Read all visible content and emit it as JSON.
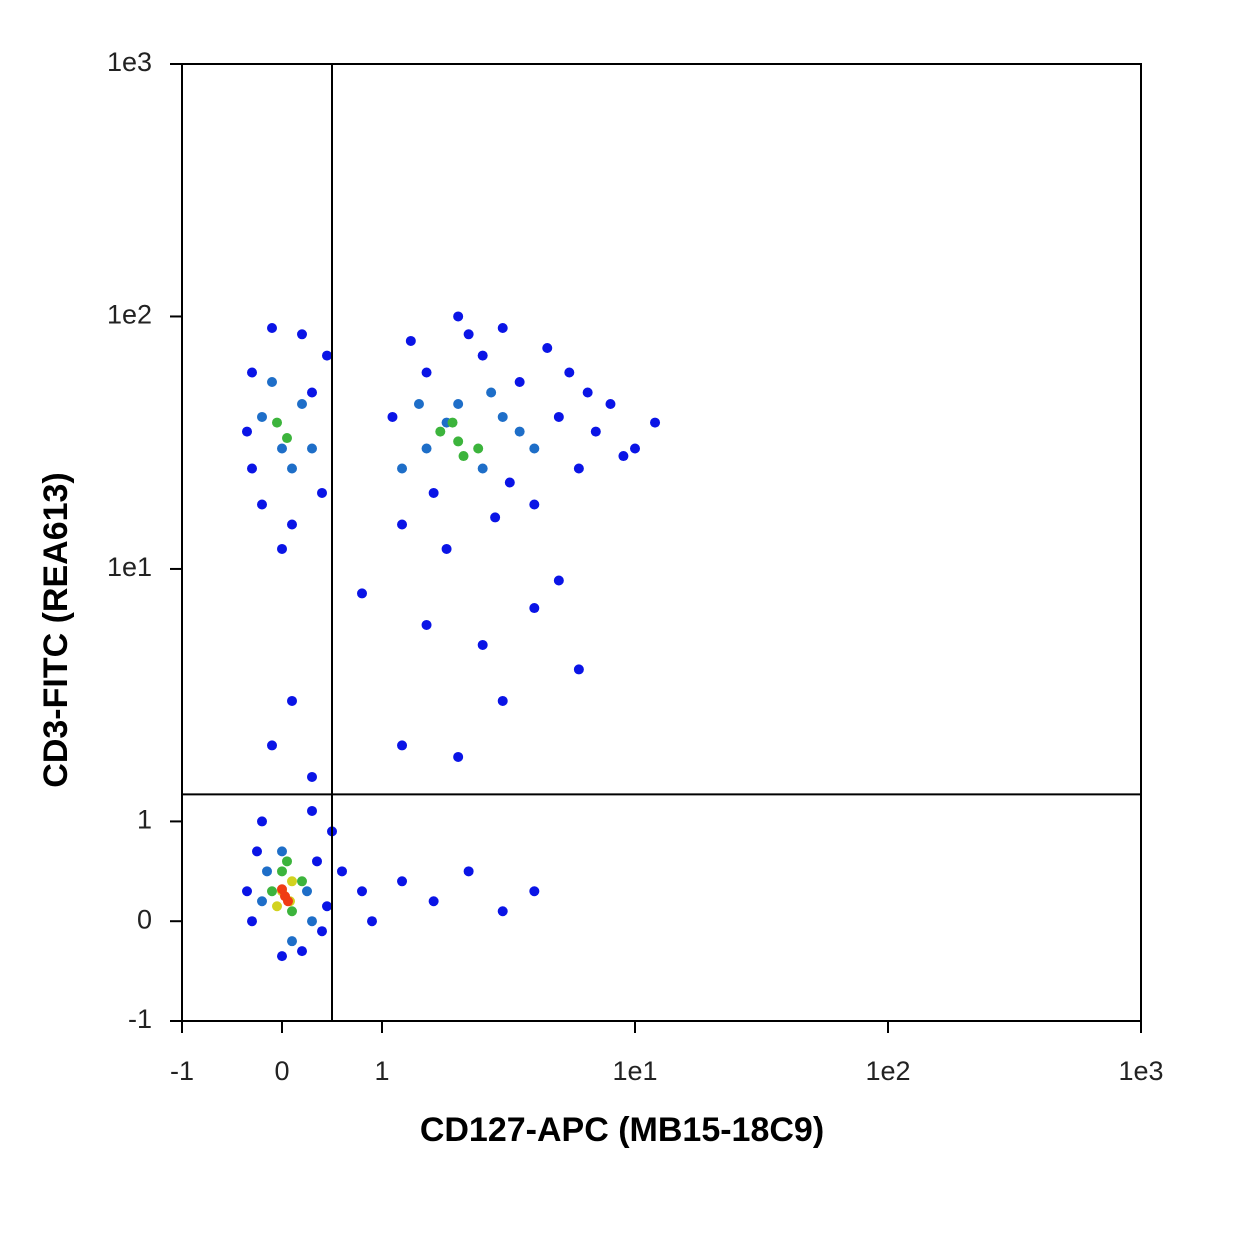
{
  "chart_data": {
    "type": "scatter",
    "xlabel": "CD127-APC (MB15-18C9)",
    "ylabel": "CD3-FITC (REA613)",
    "scale": "biexponential",
    "xlim": [
      -1,
      1000
    ],
    "ylim": [
      -1,
      1000
    ],
    "xticks": [
      -1,
      0,
      1,
      {
        "value": 10,
        "label": "1e1"
      },
      {
        "value": 100,
        "label": "1e2"
      },
      {
        "value": 1000,
        "label": "1e3"
      }
    ],
    "yticks": [
      -1,
      0,
      1,
      {
        "value": 10,
        "label": "1e1"
      },
      {
        "value": 100,
        "label": "1e2"
      },
      {
        "value": 1000,
        "label": "1e3"
      }
    ],
    "gates": {
      "x": 0.5,
      "y": 1.28
    },
    "series": [
      {
        "color": "#0a14e6",
        "x": [
          1.2,
          1.5,
          2.5,
          3.5,
          5,
          6,
          7,
          4,
          1.1,
          3,
          2,
          1.3,
          8,
          10,
          1.6,
          2.8,
          5.5,
          4.5,
          6.5,
          3.2,
          1.8,
          2.2,
          12,
          9,
          -0.3,
          -0.35,
          -0.2,
          0.1,
          0.4,
          0.45,
          0.2,
          -0.1,
          0.3,
          -0.3,
          0.0,
          0.8,
          1.5,
          2.5,
          4,
          3,
          1.2,
          6,
          0.1,
          -0.1,
          0.3,
          2,
          5,
          -0.3,
          -0.25,
          0.35,
          0.4,
          0.0,
          0.2,
          -0.2,
          0.3,
          0.6,
          0.8,
          1.2,
          1.6,
          2.2,
          3,
          4,
          0.9,
          -0.35,
          0.5,
          0.45
        ],
        "values": [
          15,
          60,
          70,
          55,
          40,
          25,
          35,
          18,
          40,
          90,
          100,
          80,
          45,
          30,
          20,
          16,
          60,
          75,
          50,
          22,
          12,
          85,
          38,
          28,
          60,
          35,
          18,
          15,
          20,
          70,
          85,
          90,
          50,
          25,
          12,
          8,
          6,
          5,
          7,
          3,
          2,
          4,
          3,
          2,
          1.5,
          1.8,
          9,
          0.0,
          0.7,
          0.6,
          -0.1,
          -0.35,
          -0.3,
          1.0,
          1.1,
          0.5,
          0.3,
          0.4,
          0.2,
          0.5,
          0.1,
          0.3,
          0.0,
          0.3,
          0.9,
          0.15
        ]
      },
      {
        "color": "#1e6ec8",
        "x": [
          1.5,
          2.5,
          3,
          1.2,
          2,
          4,
          3.5,
          1.8,
          2.7,
          1.4,
          -0.2,
          0,
          0.2,
          -0.1,
          0.3,
          0.1,
          -0.2,
          0.25,
          0.0,
          0.1,
          -0.15,
          0.3
        ],
        "values": [
          30,
          25,
          40,
          25,
          45,
          30,
          35,
          38,
          50,
          45,
          40,
          30,
          45,
          55,
          30,
          25,
          0.2,
          0.3,
          0.7,
          -0.2,
          0.5,
          0.0
        ]
      },
      {
        "color": "#3cb43c",
        "x": [
          2,
          1.7,
          2.4,
          2.1,
          1.9,
          -0.05,
          0.05,
          0.0,
          0.1,
          -0.1,
          0.2,
          0.05
        ],
        "values": [
          32,
          35,
          30,
          28,
          38,
          38,
          33,
          0.5,
          0.1,
          0.3,
          0.4,
          0.6
        ]
      },
      {
        "color": "#d2d21e",
        "x": [
          0.0,
          0.08,
          -0.05,
          0.1
        ],
        "values": [
          0.3,
          0.2,
          0.15,
          0.4
        ]
      },
      {
        "color": "#f03c14",
        "x": [
          0.03,
          0.0,
          0.06
        ],
        "values": [
          0.25,
          0.32,
          0.2
        ]
      }
    ]
  }
}
